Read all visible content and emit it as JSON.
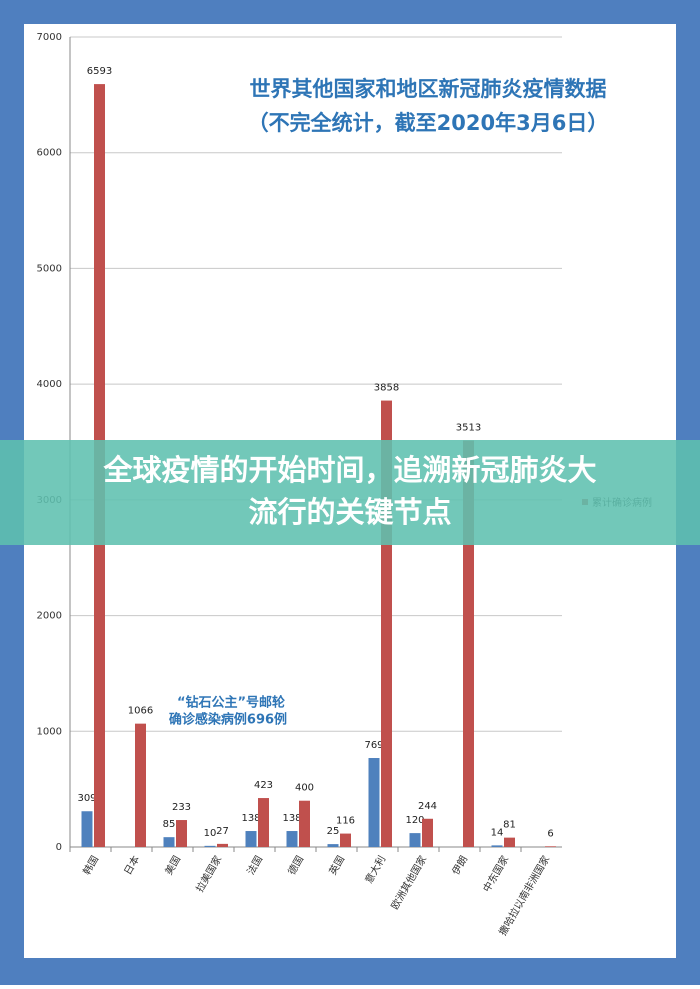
{
  "chart_data": {
    "type": "bar",
    "title": [
      "世界其他国家和地区新冠肺炎疫情数据",
      "（不完全统计，截至2020年3月6日）"
    ],
    "categories": [
      "韩国",
      "日本",
      "美国",
      "拉美国家",
      "法国",
      "德国",
      "英国",
      "意大利",
      "欧洲其他国家",
      "伊朗",
      "中东国家",
      "撒哈拉以南非洲国家"
    ],
    "series": [
      {
        "color": "#4f81bd",
        "values": [
          309,
          null,
          85,
          10,
          138,
          138,
          25,
          769,
          120,
          null,
          14,
          null
        ]
      },
      {
        "name": "累计确诊病例",
        "color": "#c0504d",
        "values": [
          6593,
          1066,
          233,
          27,
          423,
          400,
          116,
          3858,
          244,
          3513,
          81,
          6
        ]
      }
    ],
    "ylim": [
      0,
      7000
    ],
    "yticks": [
      0,
      1000,
      2000,
      3000,
      4000,
      5000,
      6000,
      7000
    ],
    "grid": true,
    "annotation": [
      "“钻石公主”号邮轮",
      "确诊感染病例696例"
    ],
    "banner": [
      "全球疫情的开始时间，追溯新冠肺炎大",
      "流行的关键节点"
    ]
  }
}
